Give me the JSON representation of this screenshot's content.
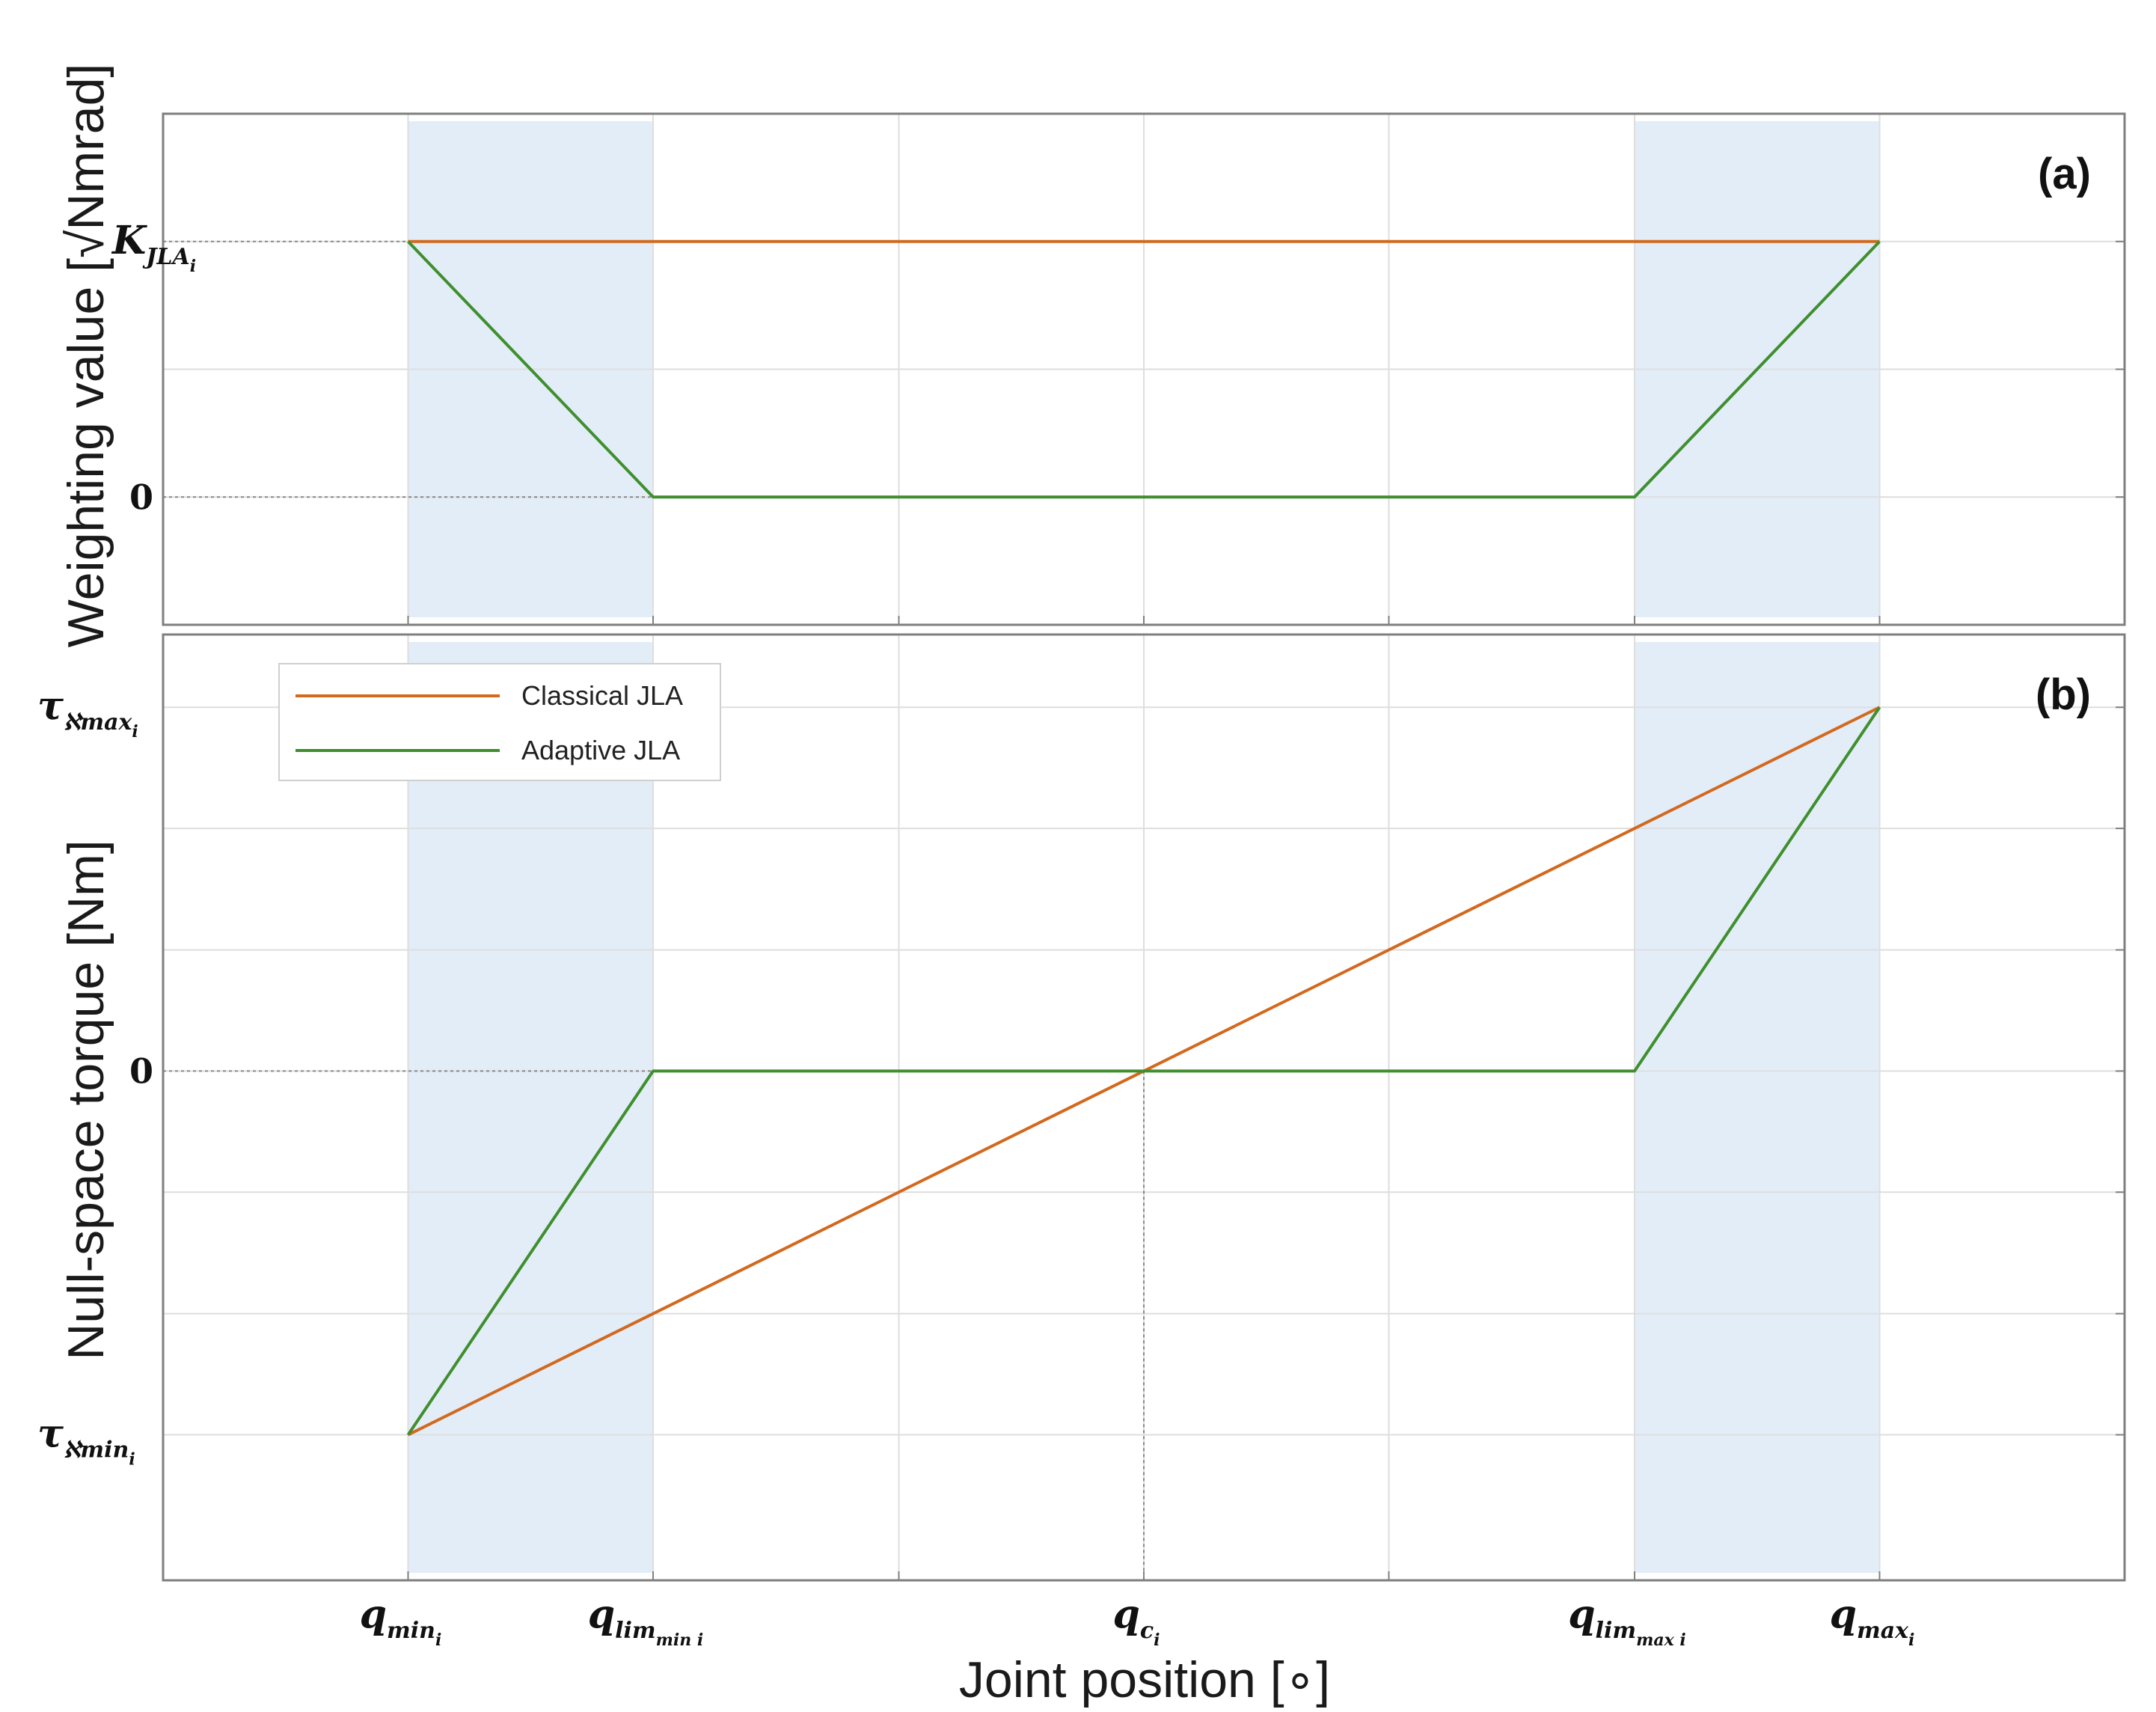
{
  "chart_data": [
    {
      "panel": "(a)",
      "type": "line",
      "ylabel": "Weighting value [√Nmrad]",
      "xlabel": "",
      "x_ticks": [
        {
          "base": "q",
          "sub": "min",
          "subsub": "i"
        },
        {
          "base": "q",
          "sub": "lim",
          "subsub": "min i"
        },
        {
          "base": "q",
          "sub": "c",
          "subsub": "i"
        },
        {
          "base": "q",
          "sub": "lim",
          "subsub": "max i"
        },
        {
          "base": "q",
          "sub": "max",
          "subsub": "i"
        }
      ],
      "x_tick_values": [
        -1,
        -0.667,
        0,
        0.667,
        1
      ],
      "y_ticks": [
        {
          "value": 1,
          "base": "K",
          "sub": "JLA",
          "subsub": "i"
        },
        {
          "value": 0,
          "text": "0"
        }
      ],
      "xlim": [
        -1.333,
        1.333
      ],
      "ylim": [
        -0.5,
        1.5
      ],
      "grid": true,
      "shaded_regions": [
        [
          -1,
          -0.667
        ],
        [
          0.667,
          1
        ]
      ],
      "series": [
        {
          "name": "Classical JLA",
          "color": "#d2691e",
          "x": [
            -1,
            1
          ],
          "y": [
            1,
            1
          ]
        },
        {
          "name": "Adaptive JLA",
          "color": "#3f8f2e",
          "x": [
            -1,
            -0.667,
            0.667,
            1
          ],
          "y": [
            1,
            0,
            0,
            1
          ]
        }
      ]
    },
    {
      "panel": "(b)",
      "type": "line",
      "ylabel": "Null-space torque [Nm]",
      "xlabel": "Joint position [∘]",
      "x_tick_values": [
        -1,
        -0.667,
        0,
        0.667,
        1
      ],
      "y_ticks": [
        {
          "value": 1,
          "base": "τ",
          "sub": "ℵmax",
          "subsub": "i"
        },
        {
          "value": 0,
          "text": "0"
        },
        {
          "value": -1,
          "base": "τ",
          "sub": "ℵmin",
          "subsub": "i"
        }
      ],
      "xlim": [
        -1.333,
        1.333
      ],
      "ylim": [
        -1.4,
        1.2
      ],
      "grid": true,
      "legend_position": "top-left",
      "shaded_regions": [
        [
          -1,
          -0.667
        ],
        [
          0.667,
          1
        ]
      ],
      "series": [
        {
          "name": "Classical JLA",
          "color": "#d2691e",
          "x": [
            -1,
            1
          ],
          "y": [
            -1,
            1
          ]
        },
        {
          "name": "Adaptive JLA",
          "color": "#3f8f2e",
          "x": [
            -1,
            -0.667,
            0.667,
            1
          ],
          "y": [
            -1,
            0,
            0,
            1
          ]
        }
      ]
    }
  ],
  "legend": {
    "items": [
      {
        "label": "Classical JLA",
        "color": "#d2691e"
      },
      {
        "label": "Adaptive JLA",
        "color": "#3f8f2e"
      }
    ]
  },
  "colors": {
    "shade": "#e3edf8",
    "grid": "#dedede",
    "frame": "#7f7f7f"
  }
}
